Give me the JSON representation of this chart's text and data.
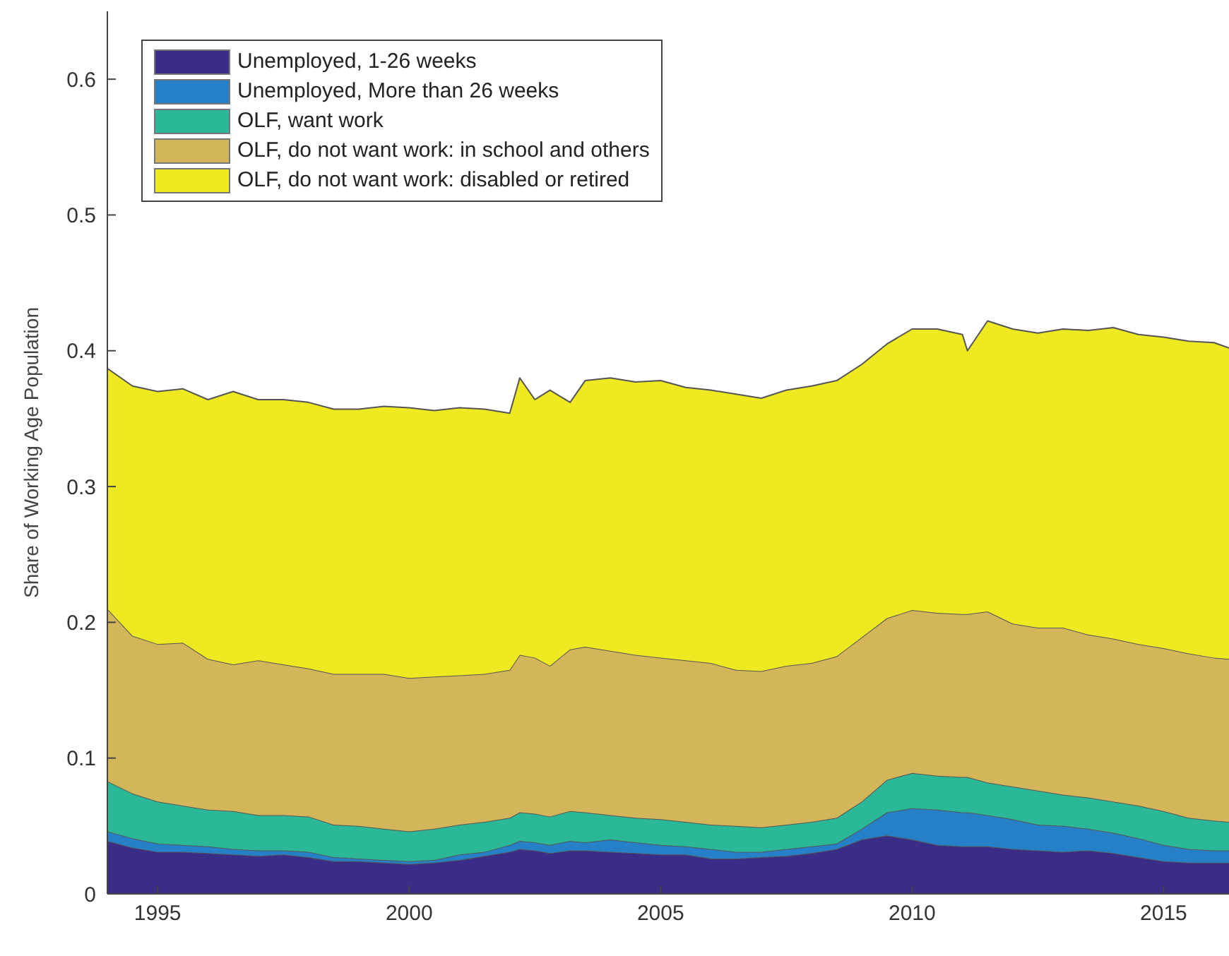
{
  "chart_data": {
    "type": "area",
    "stacked": true,
    "ylabel": "Share of Working Age Population",
    "xlim": [
      1994,
      2016.3
    ],
    "xticks": [
      1995,
      2000,
      2005,
      2010,
      2015
    ],
    "ylim": [
      0,
      0.65
    ],
    "yticks": [
      0,
      0.1,
      0.2,
      0.3,
      0.4,
      0.5,
      0.6
    ],
    "grid": false,
    "legend": "top left",
    "x": [
      1994,
      1994.5,
      1995,
      1995.5,
      1996,
      1996.5,
      1997,
      1997.5,
      1998,
      1998.5,
      1999,
      1999.5,
      2000,
      2000.5,
      2001,
      2001.5,
      2002,
      2002.2,
      2002.5,
      2002.8,
      2003.2,
      2003.5,
      2004,
      2004.5,
      2005,
      2005.5,
      2006,
      2006.5,
      2007,
      2007.5,
      2008,
      2008.5,
      2009,
      2009.5,
      2010,
      2010.5,
      2011,
      2011.1,
      2011.5,
      2012,
      2012.5,
      2013,
      2013.5,
      2014,
      2014.5,
      2015,
      2015.5,
      2016,
      2016.3
    ],
    "series": [
      {
        "name": "Unemployed, 1-26 weeks",
        "color": "#3a2d88",
        "values": [
          0.039,
          0.034,
          0.031,
          0.031,
          0.03,
          0.029,
          0.028,
          0.029,
          0.027,
          0.024,
          0.024,
          0.023,
          0.022,
          0.023,
          0.025,
          0.028,
          0.031,
          0.033,
          0.032,
          0.03,
          0.032,
          0.032,
          0.031,
          0.03,
          0.029,
          0.029,
          0.026,
          0.026,
          0.027,
          0.028,
          0.03,
          0.033,
          0.04,
          0.043,
          0.04,
          0.036,
          0.035,
          0.035,
          0.035,
          0.033,
          0.032,
          0.031,
          0.032,
          0.03,
          0.027,
          0.024,
          0.023,
          0.023,
          0.023
        ]
      },
      {
        "name": "Unemployed, More than 26 weeks",
        "color": "#2680c8",
        "values": [
          0.007,
          0.007,
          0.006,
          0.005,
          0.005,
          0.004,
          0.004,
          0.003,
          0.004,
          0.003,
          0.002,
          0.002,
          0.002,
          0.002,
          0.004,
          0.003,
          0.005,
          0.006,
          0.006,
          0.006,
          0.007,
          0.006,
          0.009,
          0.008,
          0.007,
          0.006,
          0.007,
          0.005,
          0.004,
          0.005,
          0.005,
          0.004,
          0.008,
          0.017,
          0.023,
          0.026,
          0.025,
          0.025,
          0.023,
          0.022,
          0.019,
          0.019,
          0.016,
          0.015,
          0.014,
          0.012,
          0.01,
          0.009,
          0.009
        ]
      },
      {
        "name": "OLF, want work",
        "color": "#2ab898",
        "values": [
          0.037,
          0.033,
          0.031,
          0.029,
          0.027,
          0.028,
          0.026,
          0.026,
          0.026,
          0.024,
          0.024,
          0.023,
          0.022,
          0.023,
          0.022,
          0.022,
          0.02,
          0.021,
          0.021,
          0.021,
          0.022,
          0.022,
          0.018,
          0.018,
          0.019,
          0.018,
          0.018,
          0.019,
          0.018,
          0.018,
          0.018,
          0.019,
          0.02,
          0.024,
          0.026,
          0.025,
          0.026,
          0.026,
          0.024,
          0.024,
          0.025,
          0.023,
          0.023,
          0.023,
          0.024,
          0.025,
          0.023,
          0.022,
          0.021
        ]
      },
      {
        "name": "OLF, do not want work: in school and others",
        "color": "#d4b65a",
        "values": [
          0.127,
          0.116,
          0.116,
          0.12,
          0.111,
          0.108,
          0.114,
          0.111,
          0.109,
          0.111,
          0.112,
          0.114,
          0.113,
          0.112,
          0.11,
          0.109,
          0.109,
          0.116,
          0.115,
          0.111,
          0.119,
          0.122,
          0.121,
          0.12,
          0.119,
          0.119,
          0.119,
          0.115,
          0.115,
          0.117,
          0.117,
          0.119,
          0.121,
          0.119,
          0.12,
          0.12,
          0.12,
          0.12,
          0.126,
          0.12,
          0.12,
          0.123,
          0.12,
          0.12,
          0.119,
          0.12,
          0.121,
          0.12,
          0.12
        ]
      },
      {
        "name": "OLF, do not want work: disabled or retired",
        "color": "#eee920",
        "values": [
          0.177,
          0.184,
          0.186,
          0.187,
          0.191,
          0.201,
          0.192,
          0.195,
          0.196,
          0.195,
          0.195,
          0.197,
          0.199,
          0.196,
          0.197,
          0.195,
          0.189,
          0.204,
          0.19,
          0.203,
          0.182,
          0.196,
          0.201,
          0.201,
          0.204,
          0.201,
          0.201,
          0.203,
          0.201,
          0.203,
          0.204,
          0.203,
          0.201,
          0.202,
          0.207,
          0.209,
          0.206,
          0.194,
          0.214,
          0.217,
          0.217,
          0.22,
          0.224,
          0.229,
          0.228,
          0.229,
          0.23,
          0.232,
          0.229
        ]
      }
    ]
  }
}
